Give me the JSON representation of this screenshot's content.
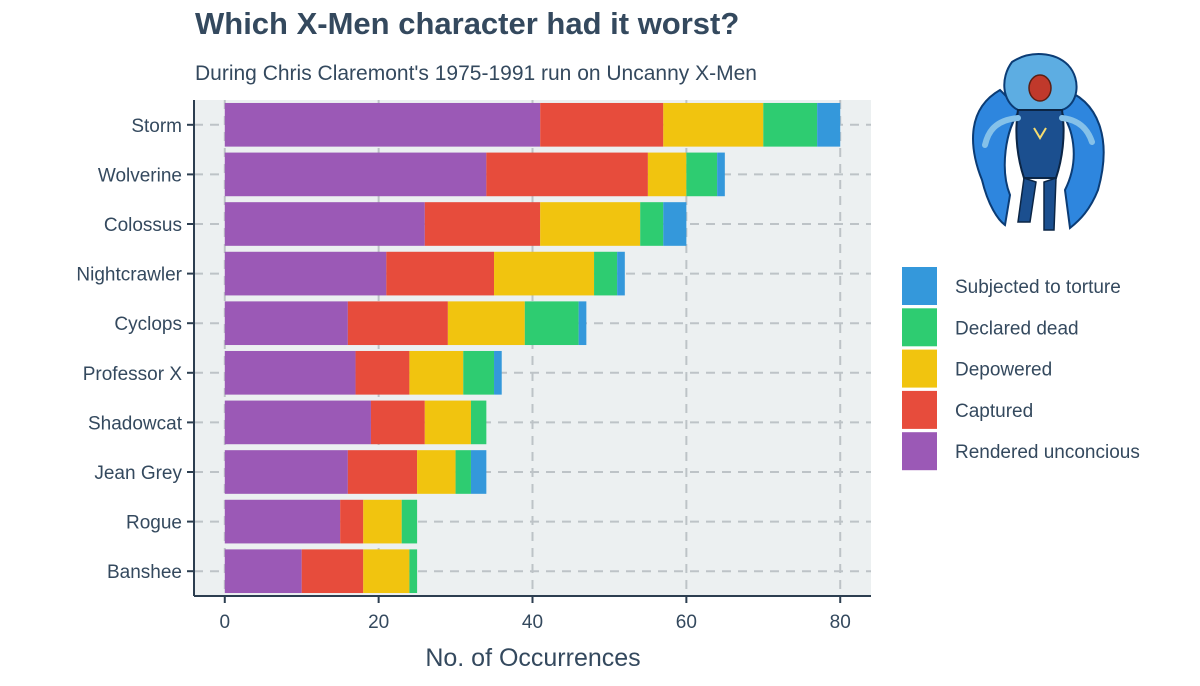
{
  "chart_data": {
    "type": "bar",
    "orientation": "horizontal",
    "stacked": true,
    "title": "Which X-Men character had it worst?",
    "subtitle": "During Chris Claremont's 1975-1991 run on Uncanny X-Men",
    "xlabel": "No. of Occurrences",
    "ylabel": "",
    "xlim": [
      -4,
      84
    ],
    "xticks": [
      0,
      20,
      40,
      60,
      80
    ],
    "grid": true,
    "legend_position": "right",
    "categories": [
      "Storm",
      "Wolverine",
      "Colossus",
      "Nightcrawler",
      "Cyclops",
      "Professor X",
      "Shadowcat",
      "Jean Grey",
      "Rogue",
      "Banshee"
    ],
    "series": [
      {
        "name": "Rendered unconcious",
        "color": "#9b59b6",
        "values": [
          41,
          34,
          26,
          21,
          16,
          17,
          19,
          16,
          15,
          10
        ]
      },
      {
        "name": "Captured",
        "color": "#e74c3c",
        "values": [
          16,
          21,
          15,
          14,
          13,
          7,
          7,
          9,
          3,
          8
        ]
      },
      {
        "name": "Depowered",
        "color": "#f1c40f",
        "values": [
          13,
          5,
          13,
          13,
          10,
          7,
          6,
          5,
          5,
          6
        ]
      },
      {
        "name": "Declared dead",
        "color": "#2ecc71",
        "values": [
          7,
          4,
          3,
          3,
          7,
          4,
          2,
          2,
          2,
          1
        ]
      },
      {
        "name": "Subjected to torture",
        "color": "#3498db",
        "values": [
          3,
          1,
          3,
          1,
          1,
          1,
          0,
          2,
          0,
          0
        ]
      }
    ],
    "legend_order": [
      "Subjected to torture",
      "Declared dead",
      "Depowered",
      "Captured",
      "Rendered unconcious"
    ]
  },
  "image": {
    "icon": "storm-character-icon"
  }
}
